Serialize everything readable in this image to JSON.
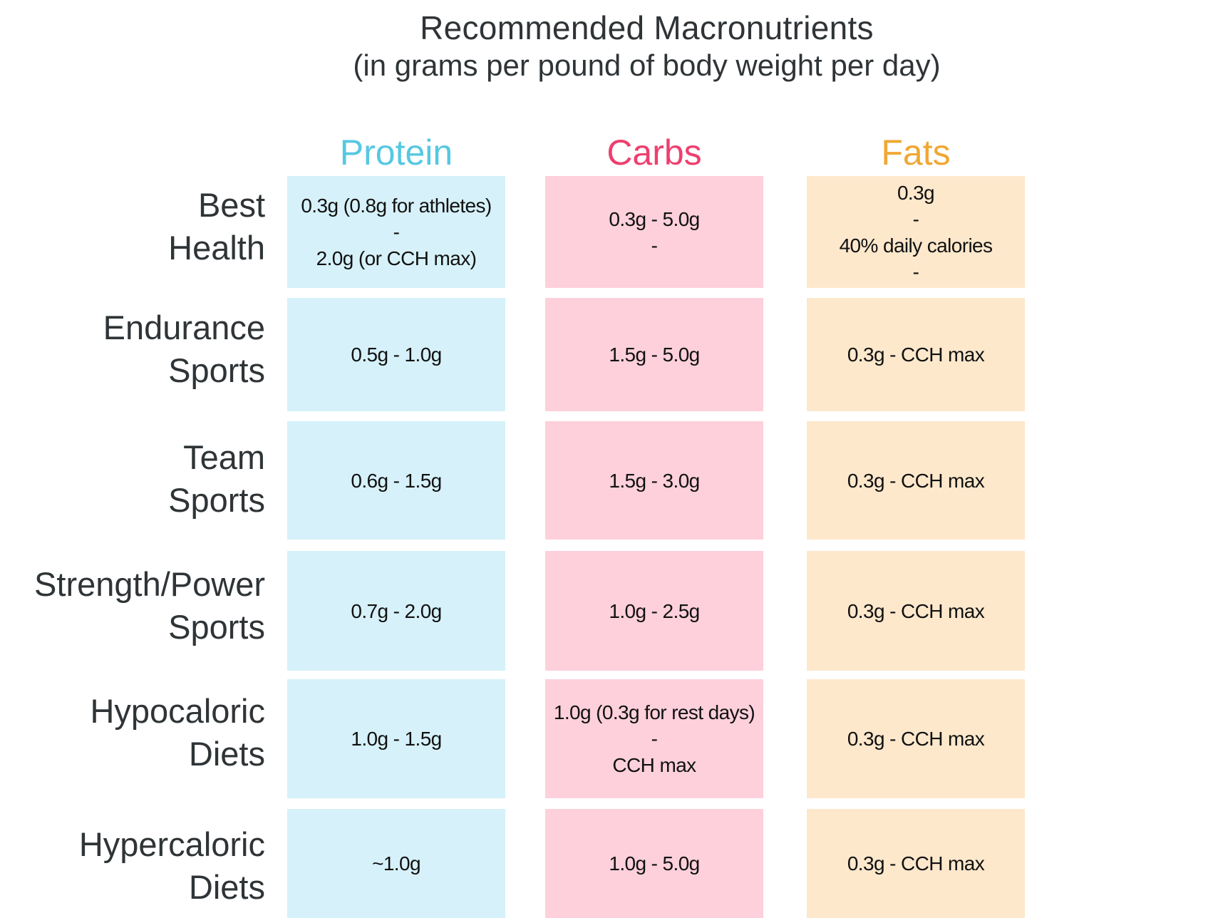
{
  "chart_data": {
    "type": "table",
    "title": "Recommended Macronutrients",
    "subtitle": "(in grams per pound of body weight per day)",
    "columns": [
      {
        "label": "Protein",
        "color": "#56c8e2",
        "fill": "#d6f1f9"
      },
      {
        "label": "Carbs",
        "color": "#ee3f6e",
        "fill": "#fdd0dc"
      },
      {
        "label": "Fats",
        "color": "#f0a733",
        "fill": "#fde8cc"
      }
    ],
    "rows": [
      {
        "label_lines": [
          "Best",
          "Health"
        ],
        "cells": [
          [
            "0.3g (0.8g for athletes)",
            "-",
            "2.0g (or CCH max)"
          ],
          [
            "0.3g - 5.0g",
            "-"
          ],
          [
            "0.3g",
            "-",
            "40% daily calories",
            "-"
          ]
        ]
      },
      {
        "label_lines": [
          "Endurance",
          "Sports"
        ],
        "cells": [
          [
            "0.5g - 1.0g"
          ],
          [
            "1.5g - 5.0g"
          ],
          [
            "0.3g - CCH max"
          ]
        ]
      },
      {
        "label_lines": [
          "Team",
          "Sports"
        ],
        "cells": [
          [
            "0.6g - 1.5g"
          ],
          [
            "1.5g - 3.0g"
          ],
          [
            "0.3g - CCH max"
          ]
        ]
      },
      {
        "label_lines": [
          "Strength/Power",
          "Sports"
        ],
        "cells": [
          [
            "0.7g - 2.0g"
          ],
          [
            "1.0g - 2.5g"
          ],
          [
            "0.3g - CCH max"
          ]
        ]
      },
      {
        "label_lines": [
          "Hypocaloric",
          "Diets"
        ],
        "cells": [
          [
            "1.0g - 1.5g"
          ],
          [
            "1.0g (0.3g for rest days)",
            "-",
            "CCH max"
          ],
          [
            "0.3g - CCH max"
          ]
        ]
      },
      {
        "label_lines": [
          "Hypercaloric",
          "Diets"
        ],
        "cells": [
          [
            "~1.0g"
          ],
          [
            "1.0g - 5.0g"
          ],
          [
            "0.3g - CCH max"
          ]
        ]
      }
    ]
  }
}
